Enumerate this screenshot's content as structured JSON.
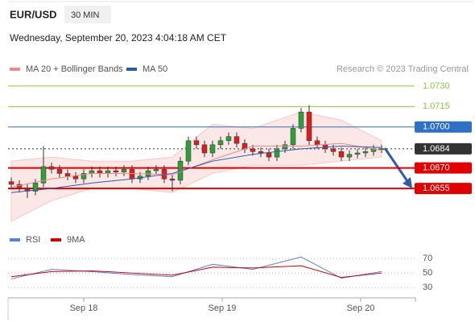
{
  "chart_data": [
    {
      "type": "candlestick",
      "title": "EUR/USD",
      "timeframe": "30 MIN",
      "subtitle": "Wednesday, September 20, 2023 4:04:18 AM CET",
      "source": "Research © 2023 Trading Central",
      "up_color": "#2e9e3a",
      "down_color": "#d62020",
      "xlim": [
        -0.4,
        50.1
      ],
      "ylim": [
        1.0625,
        1.0737
      ],
      "x": [
        0,
        1,
        2,
        3,
        4,
        5,
        6,
        7,
        8,
        9,
        10,
        11,
        12,
        13,
        14,
        15,
        16,
        17,
        18,
        19,
        20,
        21,
        22,
        23,
        24,
        25,
        26,
        27,
        28,
        29,
        30,
        31,
        32,
        33,
        34,
        35,
        36,
        37,
        38,
        39,
        40,
        41,
        42,
        43,
        44,
        45,
        46
      ],
      "open": [
        1.066,
        1.0658,
        1.0655,
        1.0653,
        1.0659,
        1.0671,
        1.0669,
        1.0666,
        1.0664,
        1.0662,
        1.0666,
        1.0668,
        1.0666,
        1.0668,
        1.0667,
        1.0669,
        1.0662,
        1.0664,
        1.0668,
        1.0669,
        1.0662,
        1.0661,
        1.0675,
        1.069,
        1.0687,
        1.0681,
        1.0687,
        1.069,
        1.0693,
        1.0688,
        1.0684,
        1.0682,
        1.0681,
        1.0678,
        1.0684,
        1.0687,
        1.0699,
        1.0711,
        1.069,
        1.0687,
        1.0684,
        1.0682,
        1.0678,
        1.068,
        1.0681,
        1.0682,
        1.0684
      ],
      "high": [
        1.0663,
        1.0661,
        1.0658,
        1.0662,
        1.0686,
        1.0674,
        1.0672,
        1.0669,
        1.0667,
        1.0669,
        1.0671,
        1.0671,
        1.0671,
        1.0671,
        1.0672,
        1.0672,
        1.0667,
        1.0671,
        1.0672,
        1.0672,
        1.0665,
        1.0678,
        1.0693,
        1.0693,
        1.069,
        1.069,
        1.0693,
        1.0696,
        1.0696,
        1.0691,
        1.0687,
        1.0685,
        1.0684,
        1.0687,
        1.069,
        1.0702,
        1.0714,
        1.0716,
        1.0693,
        1.069,
        1.0687,
        1.0685,
        1.0683,
        1.0684,
        1.0685,
        1.0687,
        1.0687
      ],
      "low": [
        1.0655,
        1.0652,
        1.0648,
        1.065,
        1.0656,
        1.0666,
        1.0663,
        1.0661,
        1.0659,
        1.0659,
        1.0663,
        1.0663,
        1.0663,
        1.0664,
        1.0664,
        1.0659,
        1.0659,
        1.0661,
        1.0665,
        1.0659,
        1.0653,
        1.0658,
        1.0672,
        1.0684,
        1.0678,
        1.0678,
        1.0684,
        1.0687,
        1.0685,
        1.0681,
        1.0679,
        1.0678,
        1.0675,
        1.0675,
        1.0681,
        1.0684,
        1.0696,
        1.0687,
        1.0684,
        1.0681,
        1.0679,
        1.0675,
        1.0675,
        1.0677,
        1.0678,
        1.0679,
        1.0681
      ],
      "close": [
        1.0658,
        1.0655,
        1.0653,
        1.0659,
        1.0671,
        1.0669,
        1.0666,
        1.0664,
        1.0662,
        1.0666,
        1.0668,
        1.0666,
        1.0668,
        1.0667,
        1.0669,
        1.0662,
        1.0664,
        1.0668,
        1.0669,
        1.0662,
        1.0661,
        1.0675,
        1.069,
        1.0687,
        1.0681,
        1.0687,
        1.069,
        1.0693,
        1.0688,
        1.0684,
        1.0682,
        1.0681,
        1.0678,
        1.0684,
        1.0687,
        1.0699,
        1.0711,
        1.069,
        1.0687,
        1.0684,
        1.0682,
        1.0678,
        1.068,
        1.0681,
        1.0682,
        1.0684,
        1.0684
      ],
      "series": [
        {
          "name": "MA 20 + Bollinger Bands",
          "color": "#f08a8a",
          "x": [
            0,
            5,
            10,
            15,
            20,
            25,
            30,
            36,
            41,
            46
          ],
          "values": [
            1.0656,
            1.0662,
            1.0666,
            1.0666,
            1.0665,
            1.0676,
            1.0686,
            1.0686,
            1.0688,
            1.0683
          ],
          "upper": [
            1.0675,
            1.0678,
            1.0675,
            1.0675,
            1.0678,
            1.0702,
            1.0699,
            1.0711,
            1.0705,
            1.069
          ],
          "lower": [
            1.0631,
            1.0646,
            1.0655,
            1.0655,
            1.0652,
            1.0666,
            1.0672,
            1.0672,
            1.0675,
            1.0678
          ]
        },
        {
          "name": "MA 50",
          "color": "#2a5ca8",
          "x": [
            0,
            5,
            10,
            15,
            20,
            25,
            30,
            36,
            41,
            46
          ],
          "values": [
            1.0652,
            1.0655,
            1.0659,
            1.0662,
            1.0666,
            1.0675,
            1.068,
            1.0684,
            1.0686,
            1.0685
          ]
        }
      ],
      "levels": [
        {
          "value": 1.073,
          "label": "1.0730",
          "color": "#8dc63f",
          "box": false,
          "dash": false
        },
        {
          "value": 1.0715,
          "label": "1.0715",
          "color": "#8dc63f",
          "box": false,
          "dash": false
        },
        {
          "value": 1.07,
          "label": "1.0700",
          "color": "#2f6fc5",
          "box": true,
          "dash": false
        },
        {
          "value": 1.0684,
          "label": "1.0684",
          "color": "#333333",
          "box": true,
          "dash": true
        },
        {
          "value": 1.067,
          "label": "1.0670",
          "color": "#e00000",
          "box": true,
          "dash": false
        },
        {
          "value": 1.0655,
          "label": "1.0655",
          "color": "#e00000",
          "box": true,
          "dash": false
        }
      ]
    },
    {
      "type": "line",
      "xlim": [
        -0.4,
        50.1
      ],
      "ylim": [
        16,
        80
      ],
      "yticks": [
        70,
        50,
        30
      ],
      "xticks": [
        {
          "value": 9,
          "label": "Sep 18"
        },
        {
          "value": 26.2,
          "label": "Sep 19"
        },
        {
          "value": 43.4,
          "label": "Sep 20"
        }
      ],
      "series": [
        {
          "name": "RSI",
          "color": "#5b7fdb",
          "x": [
            0,
            5,
            10,
            15,
            20,
            25,
            30,
            36,
            41,
            46
          ],
          "values": [
            42,
            55,
            52,
            48,
            45,
            62,
            55,
            72,
            43,
            52
          ]
        },
        {
          "name": "9MA",
          "color": "#d00000",
          "x": [
            0,
            5,
            10,
            15,
            20,
            25,
            30,
            36,
            41,
            46
          ],
          "values": [
            45,
            52,
            53,
            50,
            47,
            58,
            57,
            60,
            44,
            50
          ]
        }
      ]
    }
  ]
}
